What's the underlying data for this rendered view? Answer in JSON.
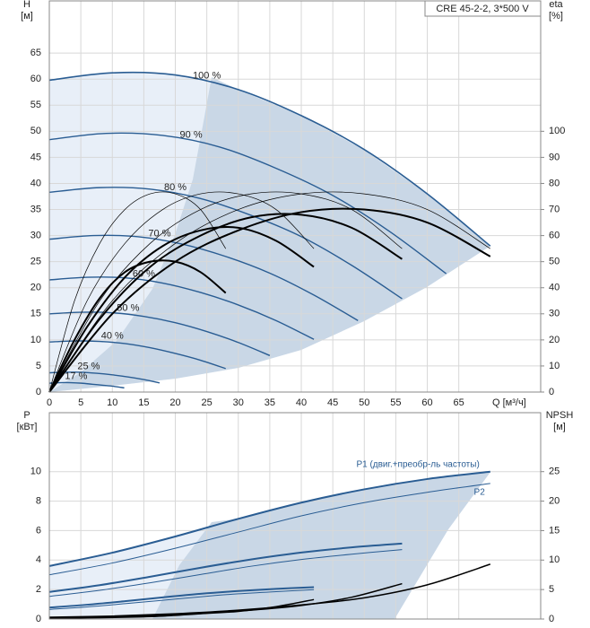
{
  "chart_data": [
    {
      "type": "line",
      "title": "CRE 45-2-2, 3*500 V",
      "x_label": "Q [м³/ч]",
      "y_label": "H",
      "y_unit": "[м]",
      "y2_label": "eta",
      "y2_unit": "[%]",
      "xlim": [
        0,
        78
      ],
      "xticks": [
        0,
        5,
        10,
        15,
        20,
        25,
        30,
        35,
        40,
        45,
        50,
        55,
        60,
        65
      ],
      "ylim": [
        0,
        75
      ],
      "yticks": [
        0,
        5,
        10,
        15,
        20,
        25,
        30,
        35,
        40,
        45,
        50,
        55,
        60,
        65
      ],
      "y2lim": [
        0,
        150
      ],
      "y2ticks": [
        0,
        10,
        20,
        30,
        40,
        50,
        60,
        70,
        80,
        90,
        100
      ],
      "grid": true,
      "series": [
        {
          "name": "100 %",
          "color": "#2a5d93",
          "width": 1.6,
          "x": [
            0,
            10,
            20,
            30,
            40,
            50,
            60,
            70
          ],
          "values": [
            59.8,
            61.2,
            60.8,
            58,
            53,
            46.5,
            38,
            28
          ]
        },
        {
          "name": "90 %",
          "color": "#2a5d93",
          "width": 1.4,
          "x": [
            0,
            9,
            18,
            27,
            36,
            45,
            54,
            63
          ],
          "values": [
            48.4,
            49.6,
            49.2,
            47.0,
            42.9,
            37.7,
            30.8,
            22.7
          ]
        },
        {
          "name": "80 %",
          "color": "#2a5d93",
          "width": 1.4,
          "x": [
            0,
            8,
            16,
            24,
            32,
            40,
            48,
            56
          ],
          "values": [
            38.3,
            39.2,
            38.9,
            37.1,
            33.9,
            29.8,
            24.3,
            17.9
          ]
        },
        {
          "name": "70 %",
          "color": "#2a5d93",
          "width": 1.4,
          "x": [
            0,
            7,
            14,
            21,
            28,
            35,
            42,
            49
          ],
          "values": [
            29.3,
            30.0,
            29.8,
            28.4,
            26.0,
            22.8,
            18.6,
            13.7
          ]
        },
        {
          "name": "60 %",
          "color": "#2a5d93",
          "width": 1.4,
          "x": [
            0,
            6,
            12,
            18,
            24,
            30,
            36,
            42
          ],
          "values": [
            21.5,
            22.0,
            21.9,
            20.9,
            19.1,
            16.7,
            13.7,
            10.1
          ]
        },
        {
          "name": "50 %",
          "color": "#2a5d93",
          "width": 1.4,
          "x": [
            0,
            5,
            10,
            15,
            20,
            25,
            30,
            35
          ],
          "values": [
            15.0,
            15.3,
            15.2,
            14.5,
            13.3,
            11.6,
            9.5,
            7.0
          ]
        },
        {
          "name": "40 %",
          "color": "#2a5d93",
          "width": 1.4,
          "x": [
            0,
            4,
            8,
            12,
            16,
            20,
            24,
            28
          ],
          "values": [
            9.6,
            9.8,
            9.7,
            9.3,
            8.5,
            7.4,
            6.1,
            4.5
          ]
        },
        {
          "name": "25 %",
          "color": "#2a5d93",
          "width": 1.4,
          "x": [
            0,
            2.5,
            5,
            7.5,
            10,
            12.5,
            15,
            17.5
          ],
          "values": [
            3.7,
            3.8,
            3.8,
            3.6,
            3.3,
            2.9,
            2.4,
            1.75
          ]
        },
        {
          "name": "17 %",
          "color": "#2a5d93",
          "width": 1.4,
          "x": [
            0,
            1.7,
            3.4,
            5.1,
            6.8,
            8.5,
            10.2,
            11.9
          ],
          "values": [
            1.7,
            1.8,
            1.8,
            1.7,
            1.5,
            1.3,
            1.1,
            0.8
          ]
        },
        {
          "axis": "y2",
          "color": "#000000",
          "width": 0.7,
          "x": [
            0,
            10,
            20,
            30,
            40,
            50,
            60,
            70
          ],
          "values": [
            0,
            35,
            57,
            70,
            76,
            76,
            70,
            55
          ]
        },
        {
          "axis": "y2",
          "color": "#000000",
          "width": 0.7,
          "x": [
            0,
            8,
            16,
            24,
            32,
            40,
            48,
            56
          ],
          "values": [
            0,
            35,
            57,
            70,
            76,
            76,
            70,
            55
          ]
        },
        {
          "axis": "y2",
          "color": "#000000",
          "width": 0.7,
          "x": [
            0,
            6,
            12,
            18,
            24,
            30,
            36,
            42
          ],
          "values": [
            0,
            35,
            57,
            70,
            76,
            76,
            70,
            55
          ]
        },
        {
          "axis": "y2",
          "color": "#000000",
          "width": 0.7,
          "x": [
            0,
            4,
            8,
            12,
            16,
            20,
            24,
            28
          ],
          "values": [
            0,
            35,
            57,
            70,
            76,
            76,
            70,
            55
          ]
        },
        {
          "axis": "y2",
          "color": "#000000",
          "width": 2,
          "x": [
            0,
            10,
            20,
            30,
            40,
            50,
            60,
            70
          ],
          "values": [
            0,
            30,
            50,
            62,
            69,
            70,
            65,
            52
          ]
        },
        {
          "axis": "y2",
          "color": "#000000",
          "width": 2,
          "x": [
            0,
            8,
            16,
            24,
            32,
            40,
            48,
            56
          ],
          "values": [
            0,
            28,
            48,
            60,
            67,
            68,
            63,
            51
          ]
        },
        {
          "axis": "y2",
          "color": "#000000",
          "width": 2,
          "x": [
            0,
            6,
            12,
            18,
            24,
            30,
            36,
            42
          ],
          "values": [
            0,
            25,
            44,
            56,
            62,
            63,
            58,
            48
          ]
        },
        {
          "axis": "y2",
          "color": "#000000",
          "width": 2,
          "x": [
            0,
            4,
            8,
            12,
            16,
            20,
            24,
            28
          ],
          "values": [
            0,
            20,
            36,
            46,
            50,
            50,
            46,
            38
          ]
        }
      ]
    },
    {
      "type": "line",
      "y_label": "P",
      "y_unit": "[кВт]",
      "y2_label": "NPSH",
      "y2_unit": "[м]",
      "xlim": [
        0,
        78
      ],
      "ylim": [
        0,
        14
      ],
      "yticks": [
        0,
        2,
        4,
        6,
        8,
        10
      ],
      "y2lim": [
        0,
        35
      ],
      "y2ticks": [
        0,
        5,
        10,
        15,
        20,
        25
      ],
      "grid": true,
      "series": [
        {
          "name": "P1 (двиг.+преобр-ль частоты)",
          "color": "#2a5d93",
          "width": 2,
          "x": [
            0,
            10,
            20,
            30,
            40,
            50,
            60,
            70
          ],
          "values": [
            3.6,
            4.5,
            5.6,
            6.8,
            7.9,
            8.8,
            9.5,
            10.0
          ]
        },
        {
          "name": "P2",
          "color": "#2a5d93",
          "width": 1,
          "x": [
            0,
            10,
            20,
            30,
            40,
            50,
            60,
            70
          ],
          "values": [
            3.0,
            3.8,
            4.8,
            5.9,
            7.0,
            7.9,
            8.6,
            9.2
          ]
        },
        {
          "color": "#2a5d93",
          "width": 2,
          "x": [
            0,
            8,
            16,
            24,
            32,
            40,
            48,
            56
          ],
          "values": [
            1.84,
            2.3,
            2.87,
            3.48,
            4.04,
            4.51,
            4.86,
            5.12
          ]
        },
        {
          "color": "#2a5d93",
          "width": 1,
          "x": [
            0,
            8,
            16,
            24,
            32,
            40,
            48,
            56
          ],
          "values": [
            1.54,
            1.95,
            2.46,
            3.02,
            3.58,
            4.04,
            4.4,
            4.71
          ]
        },
        {
          "color": "#2a5d93",
          "width": 2,
          "x": [
            0,
            6,
            12,
            18,
            24,
            30,
            36,
            42
          ],
          "values": [
            0.78,
            0.97,
            1.21,
            1.47,
            1.71,
            1.9,
            2.05,
            2.16
          ]
        },
        {
          "color": "#2a5d93",
          "width": 1,
          "x": [
            0,
            6,
            12,
            18,
            24,
            30,
            36,
            42
          ],
          "values": [
            0.65,
            0.82,
            1.04,
            1.27,
            1.51,
            1.71,
            1.86,
            1.99
          ]
        },
        {
          "axis": "y2",
          "color": "#000000",
          "width": 1.5,
          "x": [
            0,
            10,
            20,
            30,
            40,
            50,
            60,
            70
          ],
          "values": [
            0.3,
            0.5,
            0.9,
            1.5,
            2.4,
            3.6,
            5.8,
            9.3
          ]
        },
        {
          "axis": "y2",
          "color": "#000000",
          "width": 1.5,
          "x": [
            0,
            8,
            16,
            24,
            32,
            40,
            48,
            56
          ],
          "values": [
            0.2,
            0.3,
            0.6,
            1.0,
            1.5,
            2.3,
            3.7,
            6.0
          ]
        },
        {
          "axis": "y2",
          "color": "#000000",
          "width": 1.5,
          "x": [
            0,
            6,
            12,
            18,
            24,
            30,
            36,
            42
          ],
          "values": [
            0.1,
            0.2,
            0.3,
            0.5,
            0.9,
            1.3,
            2.1,
            3.3
          ]
        }
      ]
    }
  ]
}
